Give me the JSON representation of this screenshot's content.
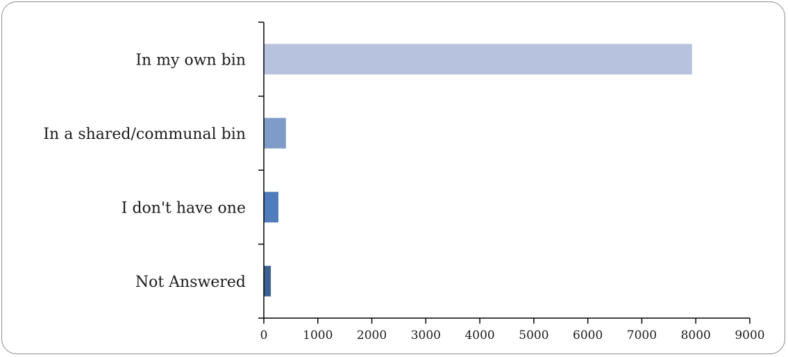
{
  "chart_data": {
    "type": "bar",
    "orientation": "horizontal",
    "categories": [
      "In my own bin",
      "In a shared/communal bin",
      "I don't have one",
      "Not Answered"
    ],
    "values": [
      7930,
      410,
      270,
      130
    ],
    "bar_colors": [
      "#b7c3de",
      "#7f9cc9",
      "#4f7cba",
      "#3e5f91"
    ],
    "xlim": [
      0,
      9000
    ],
    "x_ticks": [
      0,
      1000,
      2000,
      3000,
      4000,
      5000,
      6000,
      7000,
      8000,
      9000
    ],
    "title": "",
    "xlabel": "",
    "ylabel": "",
    "grid": false,
    "legend": "none"
  }
}
